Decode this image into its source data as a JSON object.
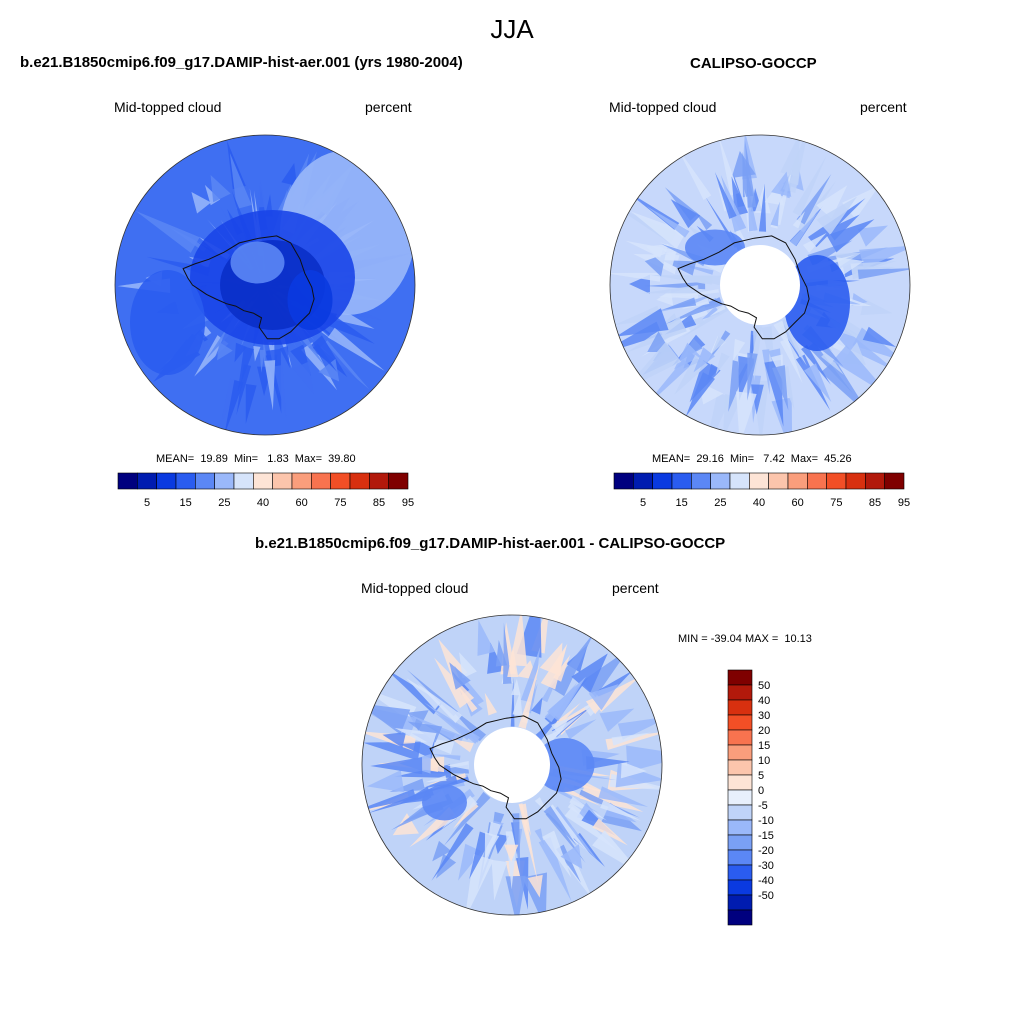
{
  "figure_title": "JJA",
  "panels": [
    {
      "title": "b.e21.B1850cmip6.f09_g17.DAMIP-hist-aer.001 (yrs 1980-2004)",
      "left_label": "Mid-topped cloud",
      "right_label": "percent",
      "stats": "MEAN=  19.89  Min=   1.83  Max=  39.80",
      "colorbar_ticks": [
        "5",
        "15",
        "25",
        "40",
        "60",
        "75",
        "85",
        "95"
      ]
    },
    {
      "title": "CALIPSO-GOCCP",
      "left_label": "Mid-topped cloud",
      "right_label": "percent",
      "stats": "MEAN=  29.16  Min=   7.42  Max=  45.26",
      "colorbar_ticks": [
        "5",
        "15",
        "25",
        "40",
        "60",
        "75",
        "85",
        "95"
      ]
    },
    {
      "title": "b.e21.B1850cmip6.f09_g17.DAMIP-hist-aer.001 - CALIPSO-GOCCP",
      "left_label": "Mid-topped cloud",
      "right_label": "percent",
      "stats": "MIN = -39.04 MAX =  10.13",
      "colorbar_ticks": [
        "50",
        "40",
        "30",
        "20",
        "15",
        "10",
        "5",
        "0",
        "-5",
        "-10",
        "-15",
        "-20",
        "-30",
        "-40",
        "-50"
      ]
    }
  ],
  "colors": {
    "abs_scale": [
      "#00007f",
      "#001cb0",
      "#0a3ae0",
      "#2a5cf0",
      "#5b87f5",
      "#9ab8fa",
      "#d6e4fb",
      "#fde4d6",
      "#fcc5ac",
      "#fa9e7c",
      "#f8734f",
      "#f24f26",
      "#d8300f",
      "#b2190b",
      "#7f0000"
    ],
    "diff_scale": [
      "#7f0000",
      "#b2190b",
      "#d8300f",
      "#f24f26",
      "#f8734f",
      "#fa9e7c",
      "#fcc5ac",
      "#fde4d6",
      "#e8f0fc",
      "#bfd3f8",
      "#9ab8fa",
      "#7aa0f5",
      "#5b87f5",
      "#2a5cf0",
      "#0a3ae0",
      "#001cb0",
      "#00007f"
    ]
  }
}
